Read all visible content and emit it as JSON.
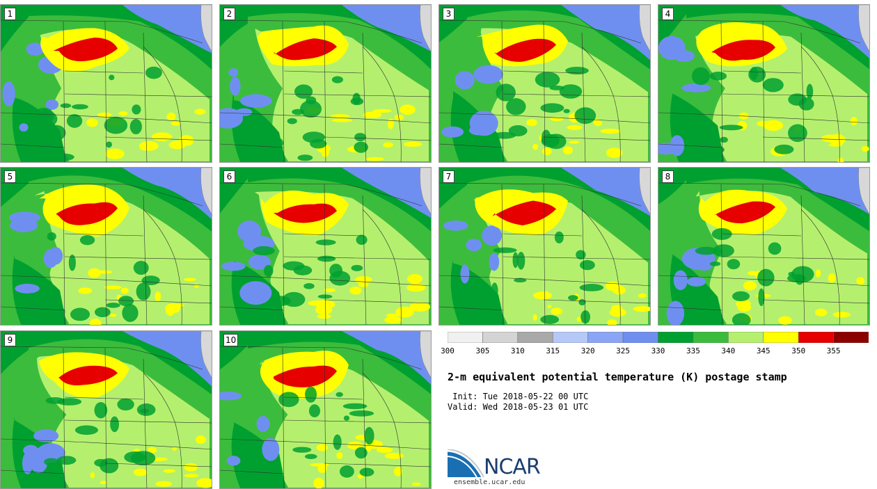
{
  "panels": [
    {
      "label": "1"
    },
    {
      "label": "2"
    },
    {
      "label": "3"
    },
    {
      "label": "4"
    },
    {
      "label": "5"
    },
    {
      "label": "6"
    },
    {
      "label": "7"
    },
    {
      "label": "8"
    },
    {
      "label": "9"
    },
    {
      "label": "10"
    }
  ],
  "colorbar": {
    "ticks": [
      "300",
      "305",
      "310",
      "315",
      "320",
      "325",
      "330",
      "335",
      "340",
      "345",
      "350",
      "355"
    ],
    "colors": [
      "#f0f0f0",
      "#d4d4d4",
      "#a9a9a9",
      "#b6c8f8",
      "#8aa5f5",
      "#6f8ff0",
      "#00a030",
      "#3cbc3c",
      "#b4f06e",
      "#ffff00",
      "#e60000",
      "#8c0000"
    ]
  },
  "title": "2-m equivalent potential temperature (K) postage stamp",
  "init_line": " Init: Tue 2018-05-22 00 UTC",
  "valid_line": "Valid: Wed 2018-05-23 01 UTC",
  "logo": {
    "text": "NCAR",
    "url": "ensemble.ucar.edu"
  }
}
